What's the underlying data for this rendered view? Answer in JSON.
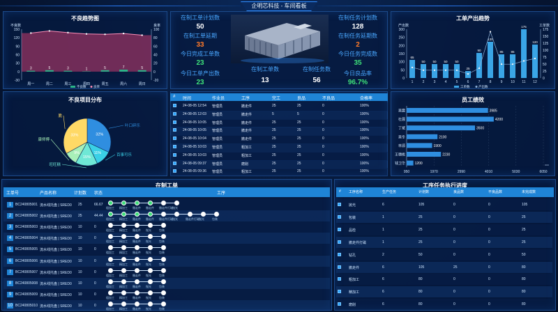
{
  "header": {
    "title": "企明芯科技 - 车间看板"
  },
  "defect_trend": {
    "title": "不良趋势图",
    "left_axis": "不良数",
    "right_axis": "良率",
    "legend": [
      "不良数",
      "良率"
    ],
    "chart_data": {
      "type": "bar",
      "categories": [
        "周一",
        "周二",
        "周三",
        "周四",
        "周五",
        "周六",
        "周日"
      ],
      "series": [
        {
          "name": "不良数",
          "values": [
            3,
            5,
            3,
            1,
            5,
            7,
            5
          ]
        },
        {
          "name": "良率",
          "values": [
            91,
            96,
            92,
            89,
            88,
            90,
            86
          ]
        }
      ],
      "ylim_left": [
        -30,
        150
      ],
      "ylim_right": [
        -20,
        100
      ],
      "yticks_left": [
        150,
        120,
        90,
        60,
        30,
        0,
        -30
      ],
      "yticks_right": [
        100,
        80,
        60,
        40,
        20,
        0,
        -20
      ]
    }
  },
  "defect_categories": {
    "title": "不良项目分布",
    "chart_data": {
      "type": "pie",
      "labels": [
        "叶口碎乐",
        "百事可乐",
        "旺旺糕",
        "康师傅",
        "脆"
      ],
      "values": [
        32,
        11,
        15,
        9,
        33
      ],
      "percent_labels": [
        "32%",
        "11%",
        "15%",
        "9%",
        "33%"
      ],
      "colors": [
        "#2f8ee0",
        "#3ad0e6",
        "#6fe8d6",
        "#a8f0b8",
        "#ffd966"
      ]
    }
  },
  "stats_left": [
    {
      "label": "在制工单计划数",
      "value": "50",
      "color": "#ffffff"
    },
    {
      "label": "在制工单延期",
      "value": "33",
      "color": "#ff7a29"
    },
    {
      "label": "今日完成工单数",
      "value": "23",
      "color": "#3ee07a"
    },
    {
      "label": "今日工单产出数",
      "value": "23",
      "color": "#3ee07a"
    }
  ],
  "stats_right": [
    {
      "label": "在制任务计划数",
      "value": "128",
      "color": "#ffffff"
    },
    {
      "label": "在制任务延期数",
      "value": "2",
      "color": "#ff7a29"
    },
    {
      "label": "今日任务完成数",
      "value": "35",
      "color": "#3ee07a"
    },
    {
      "label": "今日良品率",
      "value": "96.7%",
      "color": "#3ee07a"
    }
  ],
  "stats_mid": [
    {
      "label": "在制工单数",
      "value": "13"
    },
    {
      "label": "在制任务数",
      "value": "56"
    }
  ],
  "output_trend": {
    "title": "工单产出趋势",
    "left_axis": "产出数",
    "right_axis": "工单数",
    "legend": [
      "工单数",
      "产出数"
    ],
    "chart_data": {
      "type": "bar",
      "categories": [
        "1",
        "2",
        "3",
        "4",
        "5",
        "6",
        "7",
        "8",
        "9",
        "10",
        "11",
        "12"
      ],
      "series": [
        {
          "name": "产出数",
          "values": [
            65,
            50,
            50,
            50,
            50,
            25,
            90,
            130,
            85,
            85,
            175,
            120
          ]
        },
        {
          "name": "工单数",
          "values": [
            65,
            48,
            48,
            48,
            48,
            25,
            60,
            285,
            85,
            85,
            105,
            120
          ]
        }
      ],
      "bar_labels": [
        "65",
        "50",
        "50",
        "50",
        "50",
        "25",
        "90",
        "130",
        "85",
        "85",
        "175",
        "120"
      ],
      "yticks_left": [
        300,
        250,
        200,
        150,
        100,
        50,
        0
      ],
      "yticks_right": [
        175,
        150,
        125,
        100,
        75,
        50,
        25,
        0
      ]
    }
  },
  "events": {
    "headers": [
      "#",
      "时间",
      "作业员",
      "工序",
      "完工",
      "良品",
      "不良品",
      "合格率"
    ],
    "rows": [
      [
        "24-08-05 12:54",
        "管理员",
        "撤走件",
        "25",
        "25",
        "0",
        "100%"
      ],
      [
        "24-08-05 12:03",
        "管理员",
        "撤走件",
        "5",
        "5",
        "0",
        "100%"
      ],
      [
        "24-08-05 10:05",
        "管理员",
        "撤走件",
        "25",
        "25",
        "0",
        "100%"
      ],
      [
        "24-08-05 10:05",
        "管理员",
        "撤走件",
        "25",
        "25",
        "0",
        "100%"
      ],
      [
        "24-08-05 10:04",
        "管理员",
        "撤走件",
        "25",
        "25",
        "0",
        "100%"
      ],
      [
        "24-08-05 10:03",
        "管理员",
        "粗加工",
        "25",
        "25",
        "0",
        "100%"
      ],
      [
        "24-08-05 10:03",
        "管理员",
        "粗加工",
        "25",
        "25",
        "0",
        "100%"
      ],
      [
        "24-08-05 09:37",
        "管理员",
        "磨削",
        "25",
        "25",
        "0",
        "100%"
      ],
      [
        "24-08-05 09:36",
        "管理员",
        "粗加工",
        "25",
        "25",
        "0",
        "100%"
      ]
    ]
  },
  "employee": {
    "title": "员工绩效",
    "chart_data": {
      "type": "bar",
      "orientation": "horizontal",
      "categories": [
        "吴震",
        "杜展",
        "丁斌",
        "吴冬",
        "林源",
        "王穗桃",
        "钱卫华"
      ],
      "values": [
        3985,
        4200,
        3500,
        2100,
        1900,
        2230,
        1200
      ],
      "xlim": [
        950,
        6050
      ],
      "xticks": [
        950,
        1970,
        2990,
        4010,
        5030,
        6050
      ]
    }
  },
  "work_orders": {
    "title": "在制工单",
    "headers": [
      "工单号",
      "产品名称",
      "计划数",
      "状态",
      "工序"
    ],
    "rows": [
      {
        "no": "1",
        "id": "BC240805001",
        "name": "流水线托盘 | SRED0",
        "plan": "25",
        "status": "66.67",
        "done": 4,
        "steps": [
          "粗加工",
          "精加工",
          "撤走件",
          "撤走件",
          "撤走件打磁",
          "抛光"
        ]
      },
      {
        "no": "2",
        "id": "BC240805002",
        "name": "流水线托盘 | SRED0",
        "plan": "25",
        "status": "44.44",
        "done": 4,
        "steps": [
          "粗加工",
          "精加工",
          "撤走件",
          "撤走件",
          "撤走件打磁",
          "抛光",
          "撤走件打磁",
          "抛光",
          "包装"
        ]
      },
      {
        "no": "3",
        "id": "BC240805003",
        "name": "流水线托盘 | SRED0",
        "plan": "10",
        "status": "0",
        "done": 0,
        "steps": [
          "粗加工",
          "精加工",
          "撤走件",
          "抛光",
          "包装"
        ]
      },
      {
        "no": "4",
        "id": "BC240805004",
        "name": "流水线托盘 | SRED0",
        "plan": "10",
        "status": "0",
        "done": 0,
        "steps": [
          "粗加工",
          "精加工",
          "撤走件",
          "抛光",
          "包装"
        ]
      },
      {
        "no": "5",
        "id": "BC240805005",
        "name": "流水线托盘 | SRED0",
        "plan": "10",
        "status": "0",
        "done": 0,
        "steps": [
          "粗加工",
          "精加工",
          "撤走件",
          "抛光",
          "包装"
        ]
      },
      {
        "no": "6",
        "id": "BC240805006",
        "name": "流水线托盘 | SRED0",
        "plan": "10",
        "status": "0",
        "done": 0,
        "steps": [
          "粗加工",
          "精加工",
          "撤走件",
          "抛光",
          "包装"
        ]
      },
      {
        "no": "7",
        "id": "BC240805007",
        "name": "流水线托盘 | SRED0",
        "plan": "10",
        "status": "0",
        "done": 0,
        "steps": [
          "粗加工",
          "精加工",
          "撤走件",
          "抛光",
          "包装"
        ]
      },
      {
        "no": "8",
        "id": "BC240805008",
        "name": "流水线托盘 | SRED0",
        "plan": "10",
        "status": "0",
        "done": 0,
        "steps": [
          "粗加工",
          "精加工",
          "撤走件",
          "抛光",
          "包装"
        ]
      },
      {
        "no": "9",
        "id": "BC240805009",
        "name": "流水线托盘 | SRED0",
        "plan": "10",
        "status": "0",
        "done": 0,
        "steps": [
          "粗加工",
          "精加工",
          "撤走件",
          "抛光",
          "包装"
        ]
      },
      {
        "no": "10",
        "id": "BC240805010",
        "name": "流水线托盘 | SRED0",
        "plan": "10",
        "status": "0",
        "done": 0,
        "steps": [
          "粗加工",
          "精加工",
          "撤走件",
          "抛光",
          "包装"
        ]
      }
    ]
  },
  "task_progress": {
    "title": "工序任务执行进度",
    "headers": [
      "#",
      "工序名称",
      "生产任务",
      "计划数",
      "良品数",
      "不良品数",
      "未完成数"
    ],
    "rows": [
      [
        "抛光",
        "6",
        "105",
        "0",
        "0",
        "105"
      ],
      [
        "包装",
        "1",
        "25",
        "0",
        "0",
        "25"
      ],
      [
        "品检",
        "1",
        "25",
        "0",
        "0",
        "25"
      ],
      [
        "撤走件打磁",
        "1",
        "25",
        "0",
        "0",
        "25"
      ],
      [
        "钻孔",
        "2",
        "50",
        "0",
        "0",
        "50"
      ],
      [
        "撤走件",
        "6",
        "105",
        "25",
        "0",
        "80"
      ],
      [
        "粗加工",
        "6",
        "80",
        "0",
        "0",
        "80"
      ],
      [
        "精加工",
        "6",
        "80",
        "0",
        "0",
        "80"
      ],
      [
        "磨削",
        "6",
        "80",
        "0",
        "0",
        "80"
      ]
    ]
  }
}
